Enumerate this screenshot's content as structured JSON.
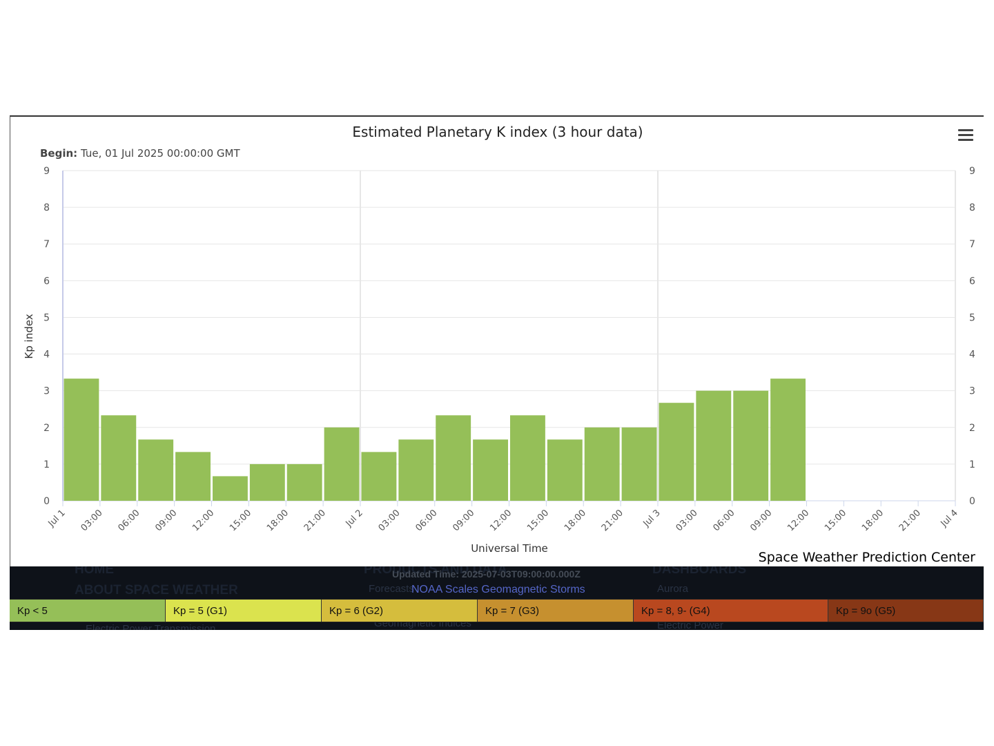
{
  "chart_data": {
    "type": "bar",
    "title": "Estimated Planetary K index (3 hour data)",
    "subtitle_label": "Begin:",
    "subtitle_value": "Tue, 01 Jul 2025 00:00:00 GMT",
    "xlabel": "Universal Time",
    "ylabel": "Kp index",
    "ylim": [
      0,
      9
    ],
    "y_ticks": [
      "0",
      "1",
      "2",
      "3",
      "4",
      "5",
      "6",
      "7",
      "8",
      "9"
    ],
    "x_tick_labels": [
      "Jul 1",
      "03:00",
      "06:00",
      "09:00",
      "12:00",
      "15:00",
      "18:00",
      "21:00",
      "Jul 2",
      "03:00",
      "06:00",
      "09:00",
      "12:00",
      "15:00",
      "18:00",
      "21:00",
      "Jul 3",
      "03:00",
      "06:00",
      "09:00",
      "12:00",
      "15:00",
      "18:00",
      "21:00",
      "Jul 4"
    ],
    "x_range_hours": [
      0,
      72
    ],
    "bar_interval_hours": 3,
    "values": [
      3.33,
      2.33,
      1.67,
      1.33,
      0.67,
      1.0,
      1.0,
      2.0,
      1.33,
      1.67,
      2.33,
      1.67,
      2.33,
      1.67,
      2.0,
      2.0,
      2.67,
      3.0,
      3.0,
      3.33
    ],
    "bar_color": "#95bf58",
    "grid": true,
    "vertical_day_lines": true,
    "legend": "bottom"
  },
  "credit": "Space Weather Prediction Center",
  "footer": {
    "updated_time": "Updated Time: 2025-07-03T09:00:00.000Z",
    "noaa_link": "NOAA Scales Geomagnetic Storms"
  },
  "kp_legend": [
    {
      "label": "Kp < 5",
      "color": "#95bf58"
    },
    {
      "label": "Kp = 5 (G1)",
      "color": "#dbe34e"
    },
    {
      "label": "Kp = 6 (G2)",
      "color": "#d5bd3d"
    },
    {
      "label": "Kp = 7 (G3)",
      "color": "#c6902f"
    },
    {
      "label": "Kp = 8, 9- (G4)",
      "color": "#b9481f"
    },
    {
      "label": "Kp = 9o (G5)",
      "color": "#873716"
    }
  ]
}
